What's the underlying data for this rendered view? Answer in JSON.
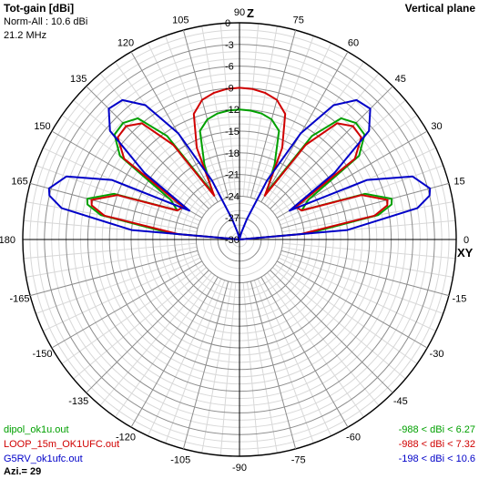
{
  "header": {
    "quantity": "Tot-gain [dBi]",
    "norm": "Norm-All : 10.6 dBi",
    "frequency": "21.2 MHz",
    "plane": "Vertical plane",
    "azimuth": "Azi.= 29"
  },
  "chart_data": {
    "type": "line",
    "projection": "polar-vertical-plane",
    "x_meaning": "elevation angle (deg)",
    "radial_ticks": [
      "0",
      "-3",
      "-6",
      "-9",
      "-12",
      "-15",
      "-18",
      "-21",
      "-24",
      "-27",
      "-30"
    ],
    "radial_range": [
      -30,
      0
    ],
    "angle_labels": [
      "0",
      "15",
      "30",
      "45",
      "60",
      "75",
      "90",
      "105",
      "120",
      "135",
      "150",
      "165",
      "180",
      "-165",
      "-150",
      "-135",
      "-120",
      "-105",
      "-90",
      "-75",
      "-60",
      "-45",
      "-30",
      "-15"
    ],
    "axis_z": "Z",
    "axis_xy": "XY",
    "x": [
      0,
      5,
      10,
      13,
      15,
      20,
      25,
      30,
      35,
      40,
      45,
      50,
      55,
      60,
      65,
      70,
      75,
      80,
      85,
      90,
      95,
      100,
      105,
      110,
      115,
      120,
      125,
      130,
      135,
      140,
      145,
      150,
      155,
      160,
      165,
      167,
      170,
      175,
      180
    ],
    "series": [
      {
        "name": "dipol_ok1u.out",
        "range_label": "-988 < dBi < 6.27",
        "color": "#00a000",
        "values": [
          -30,
          -20.5,
          -10.5,
          -8.4,
          -8.2,
          -11.5,
          -20.5,
          -19.0,
          -9.8,
          -7.4,
          -7.2,
          -8.1,
          -12.5,
          -22.5,
          -18.5,
          -14.0,
          -12.8,
          -12.3,
          -12.1,
          -12.0,
          -12.1,
          -12.3,
          -12.8,
          -14.0,
          -18.5,
          -22.5,
          -12.5,
          -8.1,
          -7.2,
          -7.4,
          -9.8,
          -19.0,
          -20.5,
          -11.5,
          -8.2,
          -8.4,
          -10.5,
          -20.5,
          -30
        ]
      },
      {
        "name": "LOOP_15m_OK1UFC.out",
        "range_label": "-988 < dBi < 7.32",
        "color": "#d00000",
        "values": [
          -30,
          -21.5,
          -11.0,
          -9.0,
          -8.8,
          -12.0,
          -20.5,
          -21.0,
          -10.5,
          -8.0,
          -7.8,
          -9.0,
          -14.0,
          -23.0,
          -16.0,
          -11.5,
          -10.0,
          -9.4,
          -9.1,
          -9.0,
          -9.1,
          -9.4,
          -10.0,
          -11.5,
          -16.0,
          -23.0,
          -14.0,
          -9.0,
          -7.8,
          -8.0,
          -10.5,
          -21.0,
          -20.5,
          -12.0,
          -8.8,
          -9.0,
          -11.0,
          -21.5,
          -30
        ]
      },
      {
        "name": "G5RV_ok1ufc.out",
        "range_label": "-198 < dBi < 10.6",
        "color": "#0000c8",
        "values": [
          -30,
          -15.0,
          -5.0,
          -3.0,
          -2.7,
          -4.5,
          -10.5,
          -22.0,
          -14.0,
          -6.6,
          -4.4,
          -4.8,
          -7.3,
          -13.0,
          -21.0,
          -27.0,
          -29.0,
          -29.8,
          -30,
          -30,
          -30,
          -29.8,
          -29.0,
          -27.0,
          -21.0,
          -13.0,
          -7.3,
          -4.8,
          -4.4,
          -6.6,
          -14.0,
          -22.0,
          -10.5,
          -4.5,
          -2.7,
          -3.0,
          -5.0,
          -15.0,
          -30
        ]
      }
    ]
  }
}
